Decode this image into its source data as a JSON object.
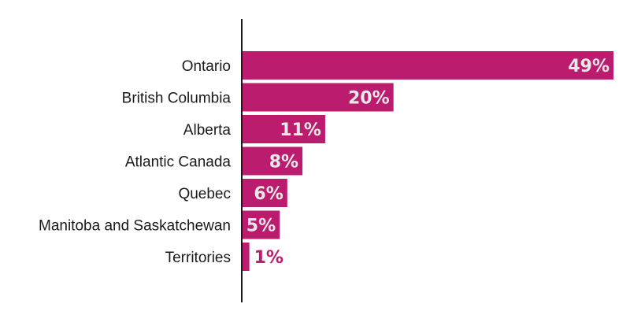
{
  "chart_data": {
    "type": "bar",
    "orientation": "horizontal",
    "categories": [
      "Ontario",
      "British Columbia",
      "Alberta",
      "Atlantic Canada",
      "Quebec",
      "Manitoba and Saskatchewan",
      "Territories"
    ],
    "values": [
      49,
      20,
      11,
      8,
      6,
      5,
      1
    ],
    "value_labels": [
      "49%",
      "20%",
      "11%",
      "8%",
      "6%",
      "5%",
      "1%"
    ],
    "title": "",
    "xlabel": "",
    "ylabel": "",
    "xlim": [
      0,
      49
    ],
    "grid": false,
    "legend": "none",
    "bar_color": "#bb1c6e",
    "inside_label_color": "#e9e9e9",
    "outside_label_color": "#bb1c6e",
    "axis_color": "#1a1a1a"
  }
}
